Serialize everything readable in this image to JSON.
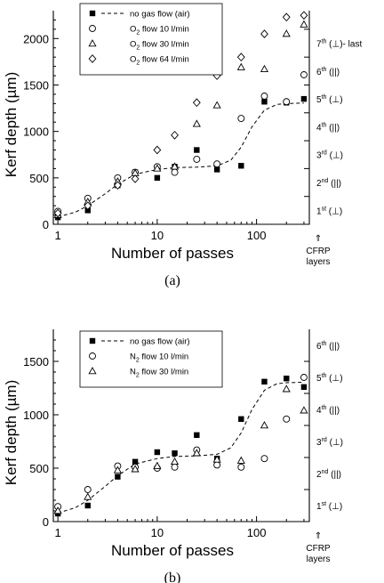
{
  "chart_data": [
    {
      "type": "scatter",
      "panel_label": "(a)",
      "xlabel": "Number of passes",
      "ylabel": "Kerf depth (µm)",
      "xscale": "log",
      "xlim": [
        0.9,
        340
      ],
      "ylim": [
        0,
        2300
      ],
      "xticks": [
        1,
        10,
        100
      ],
      "yticks": [
        0,
        500,
        1000,
        1500,
        2000
      ],
      "grid": false,
      "legend_position": "top-left",
      "series": [
        {
          "name": "no gas flow (air)",
          "marker": "filled-square",
          "x": [
            1,
            2,
            4,
            6,
            10,
            15,
            25,
            40,
            70,
            120,
            200,
            300
          ],
          "y": [
            75,
            150,
            420,
            560,
            500,
            620,
            800,
            590,
            630,
            1320,
            1310,
            1350
          ]
        },
        {
          "name": "O₂ flow 10 l/min",
          "legend_main": "O",
          "legend_sub": "2",
          "legend_rest": " flow 10 l/min",
          "marker": "open-circle",
          "x": [
            1,
            2,
            4,
            6,
            10,
            15,
            25,
            40,
            70,
            120,
            200,
            300
          ],
          "y": [
            140,
            280,
            500,
            560,
            620,
            560,
            700,
            650,
            1140,
            1380,
            1320,
            1610
          ]
        },
        {
          "name": "O₂ flow 30 l/min",
          "legend_main": "O",
          "legend_sub": "2",
          "legend_rest": " flow 30 l/min",
          "marker": "open-triangle",
          "x": [
            1,
            2,
            4,
            6,
            10,
            15,
            25,
            40,
            70,
            120,
            200,
            300
          ],
          "y": [
            100,
            240,
            460,
            550,
            600,
            620,
            1080,
            1280,
            1690,
            1670,
            2050,
            2150
          ]
        },
        {
          "name": "O₂ flow 64 l/min",
          "legend_main": "O",
          "legend_sub": "2",
          "legend_rest": " flow 64 l/min",
          "marker": "open-diamond",
          "x": [
            1,
            2,
            4,
            6,
            10,
            15,
            25,
            40,
            70,
            120,
            200,
            300
          ],
          "y": [
            120,
            200,
            420,
            490,
            800,
            960,
            1310,
            1600,
            1800,
            2050,
            2230,
            2250
          ]
        }
      ],
      "fit_line": {
        "style": "dashed",
        "x": [
          1,
          1.5,
          2,
          3,
          4,
          6,
          10,
          15,
          25,
          40,
          55,
          70,
          90,
          120,
          160,
          200,
          300
        ],
        "y": [
          80,
          130,
          200,
          330,
          430,
          540,
          590,
          610,
          615,
          630,
          690,
          830,
          1050,
          1230,
          1290,
          1300,
          1305
        ]
      },
      "layers": {
        "entries": [
          {
            "main": "1",
            "sup": "st",
            "orient": "(⊥)",
            "depth": 150
          },
          {
            "main": "2",
            "sup": "nd",
            "orient": "(||)",
            "depth": 450
          },
          {
            "main": "3",
            "sup": "rd",
            "orient": "(⊥)",
            "depth": 750
          },
          {
            "main": "4",
            "sup": "th",
            "orient": "(||)",
            "depth": 1050
          },
          {
            "main": "5",
            "sup": "th",
            "orient": "(⊥)",
            "depth": 1350
          },
          {
            "main": "6",
            "sup": "th",
            "orient": "(||)",
            "depth": 1650
          },
          {
            "main": "7",
            "sup": "th",
            "orient": "(⊥)- last",
            "depth": 1950
          }
        ],
        "boundaries": [
          300,
          600,
          900,
          1200,
          1500,
          1800,
          2100
        ],
        "arrow": "⇑",
        "caption_line1": "CFRP",
        "caption_line2": "layers"
      }
    },
    {
      "type": "scatter",
      "panel_label": "(b)",
      "xlabel": "Number of passes",
      "ylabel": "Kerf depth (µm)",
      "xscale": "log",
      "xlim": [
        0.9,
        340
      ],
      "ylim": [
        0,
        1800
      ],
      "xticks": [
        1,
        10,
        100
      ],
      "yticks": [
        0,
        500,
        1000,
        1500
      ],
      "grid": false,
      "legend_position": "top-left",
      "series": [
        {
          "name": "no gas flow (air)",
          "marker": "filled-square",
          "x": [
            1,
            2,
            4,
            6,
            10,
            15,
            25,
            40,
            70,
            120,
            200,
            300
          ],
          "y": [
            75,
            150,
            420,
            560,
            650,
            640,
            810,
            590,
            960,
            1310,
            1340,
            1260
          ]
        },
        {
          "name": "N₂ flow 10 l/min",
          "legend_main": "N",
          "legend_sub": "2",
          "legend_rest": " flow 10 l/min",
          "marker": "open-circle",
          "x": [
            1,
            2,
            4,
            6,
            10,
            15,
            25,
            40,
            70,
            120,
            200,
            300
          ],
          "y": [
            140,
            300,
            520,
            510,
            500,
            510,
            670,
            530,
            510,
            590,
            960,
            1350
          ]
        },
        {
          "name": "N₂ flow 30 l/min",
          "legend_main": "N",
          "legend_sub": "2",
          "legend_rest": " flow 30 l/min",
          "marker": "open-triangle",
          "x": [
            1,
            2,
            4,
            6,
            10,
            15,
            25,
            40,
            70,
            120,
            200,
            300
          ],
          "y": [
            100,
            230,
            480,
            490,
            520,
            560,
            640,
            580,
            570,
            900,
            1240,
            1040
          ]
        }
      ],
      "fit_line": {
        "style": "dashed",
        "x": [
          1,
          1.5,
          2,
          3,
          4,
          6,
          10,
          15,
          25,
          40,
          55,
          70,
          90,
          120,
          160,
          200,
          300
        ],
        "y": [
          80,
          130,
          200,
          330,
          430,
          540,
          590,
          610,
          615,
          630,
          690,
          830,
          1050,
          1230,
          1290,
          1300,
          1305
        ]
      },
      "layers": {
        "entries": [
          {
            "main": "1",
            "sup": "st",
            "orient": "(⊥)",
            "depth": 150
          },
          {
            "main": "2",
            "sup": "nd",
            "orient": "(||)",
            "depth": 450
          },
          {
            "main": "3",
            "sup": "rd",
            "orient": "(⊥)",
            "depth": 750
          },
          {
            "main": "4",
            "sup": "th",
            "orient": "(||)",
            "depth": 1050
          },
          {
            "main": "5",
            "sup": "th",
            "orient": "(⊥)",
            "depth": 1350
          },
          {
            "main": "6",
            "sup": "th",
            "orient": "(||)",
            "depth": 1650
          }
        ],
        "boundaries": [
          300,
          600,
          900,
          1200,
          1500
        ],
        "arrow": "⇑",
        "caption_line1": "CFRP",
        "caption_line2": "layers"
      }
    }
  ]
}
